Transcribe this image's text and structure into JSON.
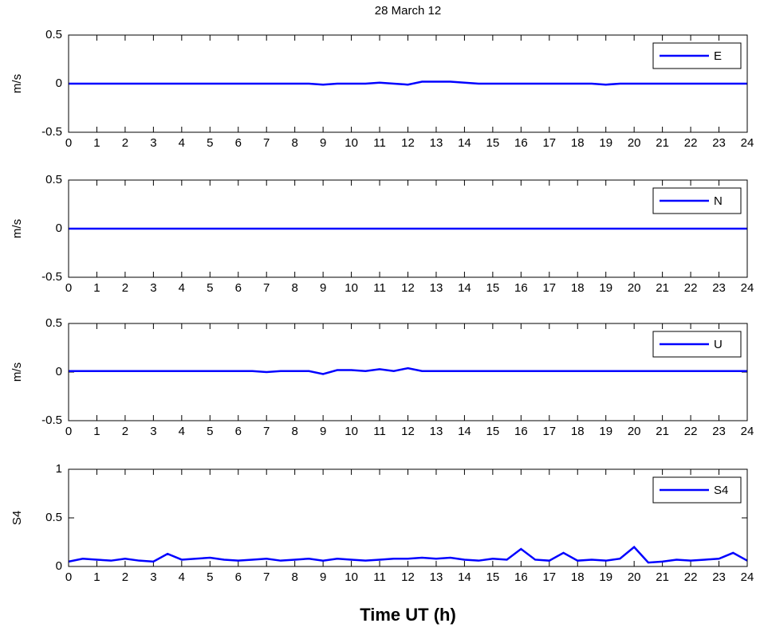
{
  "chart_data": [
    {
      "type": "line",
      "title": "28 March 12",
      "ylabel": "m/s",
      "legend": "upper right",
      "x": [
        0,
        0.5,
        1,
        1.5,
        2,
        2.5,
        3,
        3.5,
        4,
        4.5,
        5,
        5.5,
        6,
        6.5,
        7,
        7.5,
        8,
        8.5,
        9,
        9.5,
        10,
        10.5,
        11,
        11.5,
        12,
        12.5,
        13,
        13.5,
        14,
        14.5,
        15,
        15.5,
        16,
        16.5,
        17,
        17.5,
        18,
        18.5,
        19,
        19.5,
        20,
        20.5,
        21,
        21.5,
        22,
        22.5,
        23,
        23.5,
        24
      ],
      "series": [
        {
          "name": "E",
          "color": "#0000ff",
          "values": [
            0,
            0,
            0,
            0,
            0,
            0,
            0,
            0,
            0,
            0,
            0,
            0,
            0,
            0,
            0,
            0,
            0,
            0,
            -0.01,
            0,
            0,
            0,
            0.01,
            0,
            -0.01,
            0.02,
            0.02,
            0.02,
            0.01,
            0,
            0,
            0,
            0,
            0,
            0,
            0,
            0,
            0,
            -0.01,
            0,
            0,
            0,
            0,
            0,
            0,
            0,
            0,
            0,
            0
          ]
        }
      ],
      "xlim": [
        0,
        24
      ],
      "ylim": [
        -0.5,
        0.5
      ],
      "xticks": [
        0,
        1,
        2,
        3,
        4,
        5,
        6,
        7,
        8,
        9,
        10,
        11,
        12,
        13,
        14,
        15,
        16,
        17,
        18,
        19,
        20,
        21,
        22,
        23,
        24
      ],
      "yticks": [
        -0.5,
        0,
        0.5
      ]
    },
    {
      "type": "line",
      "ylabel": "m/s",
      "legend": "upper right",
      "x": [
        0,
        0.5,
        1,
        1.5,
        2,
        2.5,
        3,
        3.5,
        4,
        4.5,
        5,
        5.5,
        6,
        6.5,
        7,
        7.5,
        8,
        8.5,
        9,
        9.5,
        10,
        10.5,
        11,
        11.5,
        12,
        12.5,
        13,
        13.5,
        14,
        14.5,
        15,
        15.5,
        16,
        16.5,
        17,
        17.5,
        18,
        18.5,
        19,
        19.5,
        20,
        20.5,
        21,
        21.5,
        22,
        22.5,
        23,
        23.5,
        24
      ],
      "series": [
        {
          "name": "N",
          "color": "#0000ff",
          "values": [
            0,
            0,
            0,
            0,
            0,
            0,
            0,
            0,
            0,
            0,
            0,
            0,
            0,
            0,
            0,
            0,
            0,
            0,
            0,
            0,
            0,
            0,
            0,
            0,
            0,
            0,
            0,
            0,
            0,
            0,
            0,
            0,
            0,
            0,
            0,
            0,
            0,
            0,
            0,
            0,
            0,
            0,
            0,
            0,
            0,
            0,
            0,
            0,
            0
          ]
        }
      ],
      "xlim": [
        0,
        24
      ],
      "ylim": [
        -0.5,
        0.5
      ],
      "xticks": [
        0,
        1,
        2,
        3,
        4,
        5,
        6,
        7,
        8,
        9,
        10,
        11,
        12,
        13,
        14,
        15,
        16,
        17,
        18,
        19,
        20,
        21,
        22,
        23,
        24
      ],
      "yticks": [
        -0.5,
        0,
        0.5
      ]
    },
    {
      "type": "line",
      "ylabel": "m/s",
      "legend": "upper right",
      "x": [
        0,
        0.5,
        1,
        1.5,
        2,
        2.5,
        3,
        3.5,
        4,
        4.5,
        5,
        5.5,
        6,
        6.5,
        7,
        7.5,
        8,
        8.5,
        9,
        9.5,
        10,
        10.5,
        11,
        11.5,
        12,
        12.5,
        13,
        13.5,
        14,
        14.5,
        15,
        15.5,
        16,
        16.5,
        17,
        17.5,
        18,
        18.5,
        19,
        19.5,
        20,
        20.5,
        21,
        21.5,
        22,
        22.5,
        23,
        23.5,
        24
      ],
      "series": [
        {
          "name": "U",
          "color": "#0000ff",
          "values": [
            0.01,
            0.01,
            0.01,
            0.01,
            0.01,
            0.01,
            0.01,
            0.01,
            0.01,
            0.01,
            0.01,
            0.01,
            0.01,
            0.01,
            0,
            0.01,
            0.01,
            0.01,
            -0.02,
            0.02,
            0.02,
            0.01,
            0.03,
            0.01,
            0.04,
            0.01,
            0.01,
            0.01,
            0.01,
            0.01,
            0.01,
            0.01,
            0.01,
            0.01,
            0.01,
            0.01,
            0.01,
            0.01,
            0.01,
            0.01,
            0.01,
            0.01,
            0.01,
            0.01,
            0.01,
            0.01,
            0.01,
            0.01,
            0.01
          ]
        }
      ],
      "xlim": [
        0,
        24
      ],
      "ylim": [
        -0.5,
        0.5
      ],
      "xticks": [
        0,
        1,
        2,
        3,
        4,
        5,
        6,
        7,
        8,
        9,
        10,
        11,
        12,
        13,
        14,
        15,
        16,
        17,
        18,
        19,
        20,
        21,
        22,
        23,
        24
      ],
      "yticks": [
        -0.5,
        0,
        0.5
      ]
    },
    {
      "type": "line",
      "ylabel": "S4",
      "xlabel": "Time UT (h)",
      "legend": "upper right",
      "x": [
        0,
        0.5,
        1,
        1.5,
        2,
        2.5,
        3,
        3.5,
        4,
        4.5,
        5,
        5.5,
        6,
        6.5,
        7,
        7.5,
        8,
        8.5,
        9,
        9.5,
        10,
        10.5,
        11,
        11.5,
        12,
        12.5,
        13,
        13.5,
        14,
        14.5,
        15,
        15.5,
        16,
        16.5,
        17,
        17.5,
        18,
        18.5,
        19,
        19.5,
        20,
        20.5,
        21,
        21.5,
        22,
        22.5,
        23,
        23.5,
        24
      ],
      "series": [
        {
          "name": "S4",
          "color": "#0000ff",
          "values": [
            0.05,
            0.08,
            0.07,
            0.06,
            0.08,
            0.06,
            0.05,
            0.13,
            0.07,
            0.08,
            0.09,
            0.07,
            0.06,
            0.07,
            0.08,
            0.06,
            0.07,
            0.08,
            0.06,
            0.08,
            0.07,
            0.06,
            0.07,
            0.08,
            0.08,
            0.09,
            0.08,
            0.09,
            0.07,
            0.06,
            0.08,
            0.07,
            0.18,
            0.07,
            0.06,
            0.14,
            0.06,
            0.07,
            0.06,
            0.08,
            0.2,
            0.04,
            0.05,
            0.07,
            0.06,
            0.07,
            0.08,
            0.14,
            0.06
          ]
        }
      ],
      "xlim": [
        0,
        24
      ],
      "ylim": [
        0,
        1
      ],
      "xticks": [
        0,
        1,
        2,
        3,
        4,
        5,
        6,
        7,
        8,
        9,
        10,
        11,
        12,
        13,
        14,
        15,
        16,
        17,
        18,
        19,
        20,
        21,
        22,
        23,
        24
      ],
      "yticks": [
        0,
        0.5,
        1
      ]
    }
  ]
}
